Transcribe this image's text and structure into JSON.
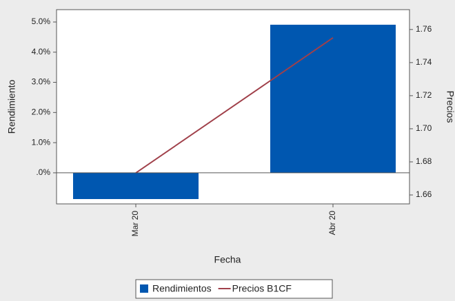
{
  "chart_data": {
    "type": "bar_line",
    "categories": [
      "Mar 20",
      "Abr 20"
    ],
    "x_label": "Fecha",
    "y_label": "Rendimiento",
    "y2_label": "Precios",
    "series": [
      {
        "name": "Rendimientos",
        "type": "bar",
        "color": "#0057b0",
        "values": [
          -0.87,
          4.91
        ]
      },
      {
        "name": "Precios B1CF",
        "type": "line",
        "color": "#a0404a",
        "axis": "y2",
        "values": [
          1.6733,
          1.755
        ]
      }
    ],
    "ylim": [
      -1.03,
      5.41
    ],
    "yticks": [
      {
        "value": 0,
        "label": ".0%"
      },
      {
        "value": 1,
        "label": "1.0%"
      },
      {
        "value": 2,
        "label": "2.0%"
      },
      {
        "value": 3,
        "label": "3.0%"
      },
      {
        "value": 4,
        "label": "4.0%"
      },
      {
        "value": 5,
        "label": "5.0%"
      }
    ],
    "y2lim": [
      1.6546,
      1.772
    ],
    "y2ticks": [
      1.66,
      1.68,
      {
        "value": 1.7,
        "label": "1.70"
      },
      1.72,
      1.74,
      1.76
    ],
    "legend": "bottom"
  }
}
